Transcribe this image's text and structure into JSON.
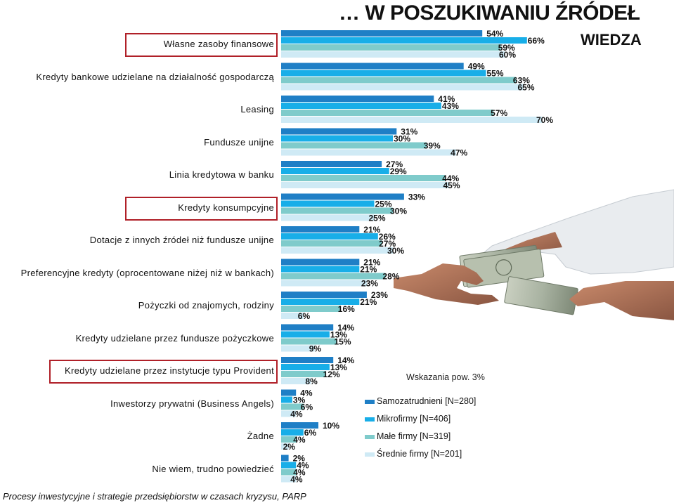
{
  "header": {
    "title": "… W POSZUKIWANIU ŹRÓDEŁ",
    "section": "WIEDZA"
  },
  "colors": {
    "highlight_box": "#b02028"
  },
  "chart_data": {
    "type": "bar",
    "orientation": "horizontal",
    "categories": [
      "Własne zasoby finansowe",
      "Kredyty bankowe udzielane na działalność gospodarczą",
      "Leasing",
      "Fundusze unijne",
      "Linia kredytowa w banku",
      "Kredyty konsumpcyjne",
      "Dotacje z innych źródeł niż fundusze unijne",
      "Preferencyjne kredyty (oprocentowane niżej niż w bankach)",
      "Pożyczki od znajomych, rodziny",
      "Kredyty udzielane przez fundusze pożyczkowe",
      "Kredyty udzielane przez instytucje typu Provident",
      "Inwestorzy prywatni (Business Angels)",
      "Żadne",
      "Nie wiem, trudno powiedzieć"
    ],
    "highlighted_categories": [
      0,
      5,
      10
    ],
    "series": [
      {
        "name": "Samozatrudnieni [N=280]",
        "color": "#1f7fc6",
        "values": [
          54,
          49,
          41,
          31,
          27,
          33,
          21,
          21,
          23,
          14,
          14,
          4,
          10,
          2
        ]
      },
      {
        "name": "Mikrofirmy [N=406]",
        "color": "#18aee8",
        "values": [
          66,
          55,
          43,
          30,
          29,
          25,
          26,
          21,
          21,
          13,
          13,
          3,
          6,
          4
        ]
      },
      {
        "name": "Małe firmy [N=319]",
        "color": "#7fcbcb",
        "values": [
          59,
          63,
          57,
          39,
          44,
          30,
          27,
          28,
          16,
          15,
          12,
          6,
          4,
          4
        ]
      },
      {
        "name": "Średnie firmy [N=201]",
        "color": "#cfeaf5",
        "values": [
          60,
          65,
          70,
          47,
          45,
          25,
          30,
          23,
          6,
          9,
          8,
          4,
          2,
          4
        ]
      }
    ],
    "value_suffix": "%",
    "note": "Wskazania pow. 3%",
    "legend_position": "bottom-right"
  },
  "footer": {
    "source": "Procesy inwestycyjne i strategie przedsiębiorstw w czasach kryzysu, PARP"
  }
}
